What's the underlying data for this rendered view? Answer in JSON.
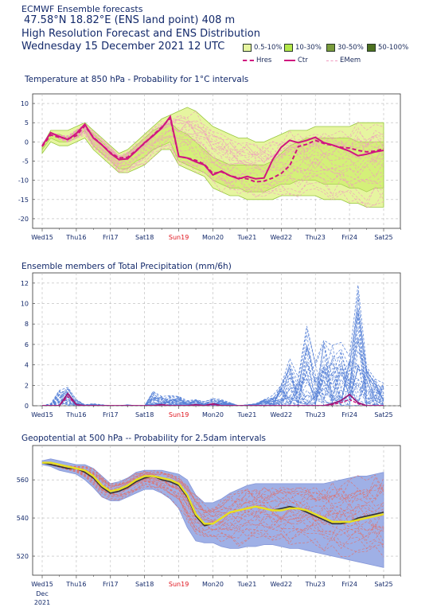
{
  "header": {
    "line1": "ECMWF Ensemble forecasts",
    "line2": "47.58°N 18.82°E (ENS land point) 408 m",
    "line3": "High Resolution Forecast and ENS Distribution",
    "line4": "Wednesday 15 December 2021 12 UTC"
  },
  "legend": {
    "boxes": [
      {
        "label": "0.5-10%",
        "color": "#e6f5a0"
      },
      {
        "label": "10-30%",
        "color": "#b4e84a"
      },
      {
        "label": "30-50%",
        "color": "#7a9c3c"
      },
      {
        "label": "50-100%",
        "color": "#4c7020"
      }
    ],
    "lines": [
      {
        "label": "Hres",
        "color": "#d0167f",
        "style": "dashed"
      },
      {
        "label": "Ctr",
        "color": "#d0167f",
        "style": "solid"
      },
      {
        "label": "EMem",
        "color": "#f09abf",
        "style": "dashed"
      }
    ]
  },
  "x_axis": {
    "labels": [
      "Wed15",
      "Thu16",
      "Fri17",
      "Sat18",
      "Sun19",
      "Mon20",
      "Tue21",
      "Wed22",
      "Thu23",
      "Fri24",
      "Sat25"
    ],
    "highlight_label": "Sun19",
    "highlight_color": "#e0141e",
    "sub_labels": [
      "Dec",
      "2021"
    ]
  },
  "chart_data": [
    {
      "type": "line",
      "title": "Temperature at 850 hPa - Probability for 1°C intervals",
      "ylim": [
        -22.5,
        12.5
      ],
      "yticks": [
        10,
        5,
        0,
        -5,
        -10,
        -15,
        -20
      ],
      "x_days": [
        0,
        0.25,
        0.5,
        0.75,
        1,
        1.25,
        1.5,
        1.75,
        2,
        2.25,
        2.5,
        2.75,
        3,
        3.25,
        3.5,
        3.75,
        4,
        4.25,
        4.5,
        4.75,
        5,
        5.25,
        5.5,
        5.75,
        6,
        6.25,
        6.5,
        6.75,
        7,
        7.25,
        7.5,
        7.75,
        8,
        8.25,
        8.5,
        8.75,
        9,
        9.25,
        9.5,
        9.75,
        10
      ],
      "series": [
        {
          "name": "Hres",
          "values": [
            -1.2,
            1.8,
            1.2,
            0.8,
            1.6,
            4.2,
            1.2,
            -0.8,
            -2.8,
            -4.2,
            -4.0,
            -2.2,
            -0.4,
            1.8,
            3.8,
            6.2,
            -3.8,
            -4.2,
            -4.8,
            -5.8,
            -8.2,
            -7.8,
            -8.8,
            -9.4,
            -9.6,
            -10.4,
            -10.2,
            -9.4,
            -8.2,
            -6.2,
            -1.2,
            -0.6,
            0.4,
            -0.4,
            -0.9,
            -1.4,
            -1.6,
            -2.2,
            -2.6,
            -2.4,
            -1.8
          ]
        },
        {
          "name": "Ctr",
          "values": [
            -1.0,
            2.4,
            1.4,
            0.6,
            2.2,
            4.6,
            1.0,
            -0.8,
            -3.0,
            -4.6,
            -4.4,
            -2.4,
            -0.2,
            1.6,
            3.6,
            6.6,
            -3.8,
            -4.2,
            -5.2,
            -6.0,
            -8.6,
            -7.6,
            -8.8,
            -9.6,
            -9.0,
            -9.6,
            -9.4,
            -4.6,
            -1.4,
            0.4,
            -0.2,
            0.4,
            1.2,
            -0.2,
            -0.8,
            -1.6,
            -2.4,
            -3.6,
            -3.2,
            -2.6,
            -2.2
          ]
        }
      ],
      "prob_ranges": [
        {
          "label": "0.5-10%",
          "min": [
            -3,
            0,
            -1,
            -1,
            0,
            1,
            -2,
            -4,
            -6,
            -8,
            -8,
            -7,
            -6,
            -4,
            -2,
            -2,
            -6,
            -7,
            -8,
            -9,
            -12,
            -13,
            -14,
            -14,
            -15,
            -15,
            -15,
            -15,
            -14,
            -14,
            -14,
            -14,
            -14,
            -15,
            -15,
            -15,
            -16,
            -16,
            -17,
            -17,
            -17
          ],
          "max": [
            -1,
            3,
            3,
            3,
            4,
            5,
            3,
            1,
            -1,
            -3,
            -2,
            0,
            2,
            4,
            6,
            7,
            8,
            9,
            8,
            6,
            4,
            3,
            2,
            1,
            1,
            0,
            0,
            1,
            2,
            3,
            3,
            3,
            4,
            4,
            4,
            4,
            4,
            5,
            5,
            5,
            5
          ]
        },
        {
          "label": "10-30%",
          "min": [
            -2,
            1,
            0,
            0,
            1,
            3,
            -1,
            -3,
            -5,
            -7,
            -7,
            -5,
            -4,
            -2,
            -1,
            0,
            -5,
            -6,
            -7,
            -8,
            -10,
            -11,
            -12,
            -12,
            -13,
            -13,
            -13,
            -12,
            -11,
            -11,
            -10,
            -10,
            -10,
            -11,
            -11,
            -11,
            -12,
            -12,
            -13,
            -12,
            -12
          ],
          "max": [
            -1,
            2,
            2,
            1,
            3,
            4,
            2,
            0,
            -2,
            -4,
            -3,
            -1,
            1,
            3,
            4,
            5,
            3,
            2,
            0,
            -2,
            -4,
            -5,
            -6,
            -6,
            -6,
            -6,
            -6,
            -5,
            -3,
            -1,
            0,
            1,
            1,
            1,
            1,
            1,
            1,
            0,
            0,
            0,
            0
          ]
        }
      ]
    },
    {
      "type": "line",
      "title": "Ensemble members of Total Precipitation (mm/6h)",
      "ylim": [
        0,
        13
      ],
      "yticks": [
        12,
        10,
        8,
        6,
        4,
        2,
        0
      ],
      "x_days": [
        0,
        0.25,
        0.5,
        0.75,
        1,
        1.25,
        1.5,
        1.75,
        2,
        2.25,
        2.5,
        2.75,
        3,
        3.25,
        3.5,
        3.75,
        4,
        4.25,
        4.5,
        4.75,
        5,
        5.25,
        5.5,
        5.75,
        6,
        6.25,
        6.5,
        6.75,
        7,
        7.25,
        7.5,
        7.75,
        8,
        8.25,
        8.5,
        8.75,
        9,
        9.25,
        9.5,
        9.75,
        10
      ],
      "series": [
        {
          "name": "Ctr",
          "values": [
            0,
            0,
            0,
            1.2,
            0.1,
            0,
            0,
            0,
            0,
            0,
            0,
            0,
            0,
            0,
            0.1,
            0,
            0,
            0,
            0.1,
            0,
            0.2,
            0,
            0,
            0,
            0,
            0,
            0,
            0,
            0,
            0,
            0,
            0,
            0,
            0,
            0.2,
            0.5,
            1.1,
            0.3,
            0,
            0,
            0
          ]
        },
        {
          "name": "Hres",
          "values": [
            0,
            0,
            0,
            0.9,
            0.1,
            0,
            0,
            0,
            0,
            0,
            0,
            0,
            0,
            0,
            0.1,
            0,
            0,
            0,
            0,
            0,
            0.1,
            0,
            0,
            0,
            0,
            0,
            0,
            0,
            0,
            0,
            0,
            0,
            0,
            0,
            0.1,
            0.3,
            0.6,
            0.2,
            0,
            0,
            0
          ]
        },
        {
          "name": "EMem max",
          "values": [
            0,
            0.2,
            1.5,
            1.8,
            0.6,
            0.1,
            0.2,
            0.1,
            0,
            0,
            0.1,
            0,
            0,
            1.4,
            0.9,
            1.0,
            0.9,
            0.5,
            0.6,
            0.4,
            0.7,
            0.6,
            0.3,
            0,
            0.1,
            0.2,
            0.6,
            1.0,
            2.0,
            4.6,
            2.8,
            7.8,
            4.2,
            6.4,
            5.9,
            6.2,
            4.8,
            11.8,
            3.8,
            2.6,
            2.2
          ]
        }
      ]
    },
    {
      "type": "line",
      "title": "Geopotential at 500 hPa -- Probability for 2.5dam intervals",
      "ylim": [
        510,
        578
      ],
      "yticks": [
        560,
        540,
        520
      ],
      "x_days": [
        0,
        0.25,
        0.5,
        0.75,
        1,
        1.25,
        1.5,
        1.75,
        2,
        2.25,
        2.5,
        2.75,
        3,
        3.25,
        3.5,
        3.75,
        4,
        4.25,
        4.5,
        4.75,
        5,
        5.25,
        5.5,
        5.75,
        6,
        6.25,
        6.5,
        6.75,
        7,
        7.25,
        7.5,
        7.75,
        8,
        8.25,
        8.5,
        8.75,
        9,
        9.25,
        9.5,
        9.75,
        10
      ],
      "series": [
        {
          "name": "Hres",
          "values": [
            569,
            569,
            568,
            567,
            566,
            565,
            562,
            557,
            554,
            555,
            557,
            560,
            562,
            562,
            561,
            560,
            558,
            552,
            542,
            537,
            537,
            540,
            543,
            544,
            545,
            546,
            545,
            544,
            544,
            545,
            545,
            544,
            542,
            540,
            538,
            538,
            538,
            539,
            540,
            541,
            542
          ]
        },
        {
          "name": "Ctr",
          "values": [
            569,
            568,
            567,
            566,
            566,
            564,
            561,
            556,
            553,
            554,
            556,
            559,
            561,
            562,
            560,
            559,
            557,
            551,
            541,
            536,
            537,
            540,
            543,
            544,
            545,
            546,
            545,
            544,
            545,
            546,
            545,
            543,
            541,
            539,
            537,
            537,
            538,
            540,
            541,
            542,
            543
          ]
        }
      ],
      "prob_ranges": [
        {
          "label": "0.5-10%",
          "min": [
            568,
            567,
            565,
            564,
            563,
            560,
            556,
            551,
            549,
            549,
            551,
            553,
            555,
            555,
            553,
            550,
            545,
            535,
            528,
            527,
            527,
            525,
            524,
            524,
            525,
            525,
            526,
            526,
            525,
            524,
            524,
            523,
            522,
            521,
            520,
            519,
            518,
            517,
            516,
            515,
            514
          ],
          "max": [
            570,
            571,
            570,
            569,
            568,
            568,
            566,
            562,
            558,
            559,
            561,
            564,
            565,
            565,
            565,
            564,
            563,
            560,
            552,
            548,
            548,
            550,
            553,
            555,
            557,
            558,
            558,
            558,
            558,
            558,
            558,
            558,
            558,
            558,
            559,
            560,
            561,
            562,
            562,
            563,
            564
          ]
        }
      ]
    }
  ]
}
